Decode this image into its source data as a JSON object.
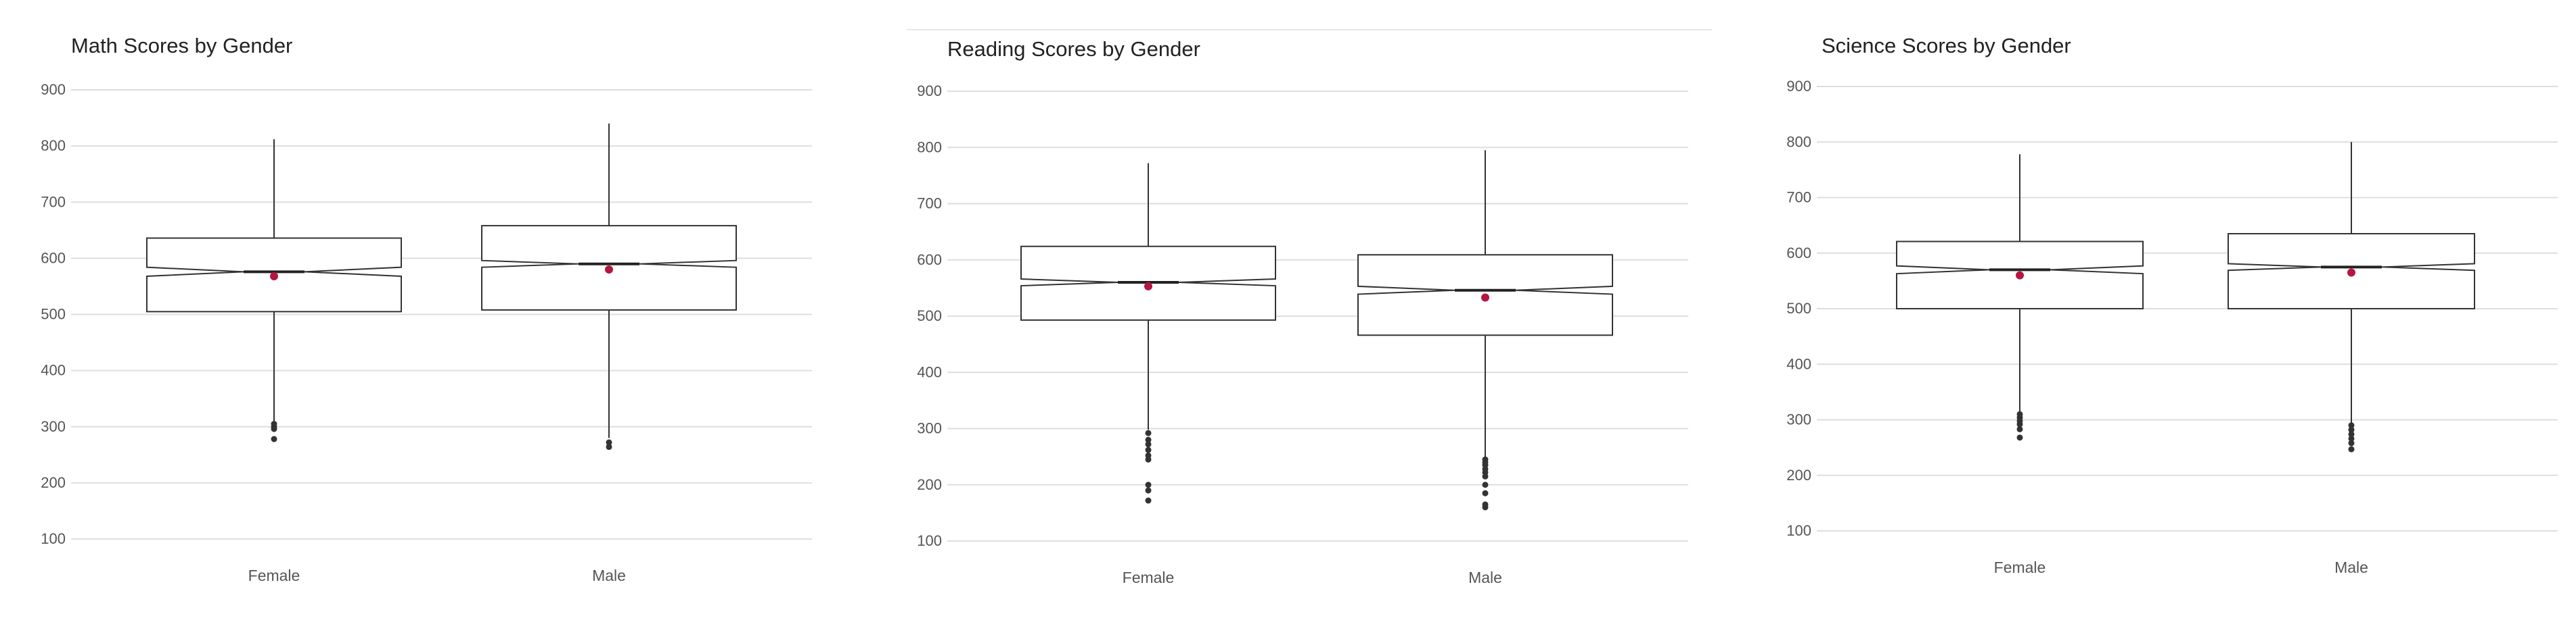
{
  "chart_data": [
    {
      "type": "boxplot",
      "title": "Math Scores by Gender",
      "xlabel": "",
      "ylabel": "",
      "ylim": [
        70,
        930
      ],
      "yticks": [
        100,
        200,
        300,
        400,
        500,
        600,
        700,
        800,
        900
      ],
      "grid": true,
      "categories": [
        "Female",
        "Male"
      ],
      "boxes": [
        {
          "category": "Female",
          "whisker_low": 310,
          "q1": 505,
          "median": 576,
          "q3": 636,
          "whisker_high": 812,
          "mean": 568,
          "outliers": [
            305,
            300,
            296,
            278
          ],
          "notch": [
            568,
            584
          ]
        },
        {
          "category": "Male",
          "whisker_low": 280,
          "q1": 508,
          "median": 590,
          "q3": 658,
          "whisker_high": 840,
          "mean": 580,
          "outliers": [
            272,
            264
          ],
          "notch": [
            584,
            596
          ]
        }
      ]
    },
    {
      "type": "boxplot",
      "title": "Reading Scores by Gender",
      "xlabel": "",
      "ylabel": "",
      "ylim": [
        70,
        930
      ],
      "yticks": [
        100,
        200,
        300,
        400,
        500,
        600,
        700,
        800,
        900
      ],
      "grid": true,
      "categories": [
        "Female",
        "Male"
      ],
      "boxes": [
        {
          "category": "Female",
          "whisker_low": 298,
          "q1": 493,
          "median": 560,
          "q3": 624,
          "whisker_high": 772,
          "mean": 553,
          "outliers": [
            292,
            280,
            272,
            262,
            252,
            245,
            200,
            190,
            172
          ],
          "notch": [
            554,
            566
          ]
        },
        {
          "category": "Male",
          "whisker_low": 250,
          "q1": 466,
          "median": 546,
          "q3": 609,
          "whisker_high": 795,
          "mean": 533,
          "outliers": [
            245,
            240,
            235,
            228,
            222,
            215,
            200,
            185,
            165,
            160
          ],
          "notch": [
            539,
            553
          ]
        }
      ]
    },
    {
      "type": "boxplot",
      "title": "Science Scores by Gender",
      "xlabel": "",
      "ylabel": "",
      "ylim": [
        70,
        930
      ],
      "yticks": [
        100,
        200,
        300,
        400,
        500,
        600,
        700,
        800,
        900
      ],
      "grid": true,
      "categories": [
        "Female",
        "Male"
      ],
      "boxes": [
        {
          "category": "Female",
          "whisker_low": 315,
          "q1": 500,
          "median": 570,
          "q3": 621,
          "whisker_high": 778,
          "mean": 560,
          "outliers": [
            310,
            304,
            298,
            292,
            283,
            268
          ],
          "notch": [
            563,
            577
          ]
        },
        {
          "category": "Male",
          "whisker_low": 295,
          "q1": 500,
          "median": 575,
          "q3": 635,
          "whisker_high": 800,
          "mean": 565,
          "outliers": [
            290,
            282,
            274,
            266,
            258,
            247
          ],
          "notch": [
            569,
            581
          ]
        }
      ]
    }
  ],
  "colors": {
    "mean_point": "#b5163f",
    "outlier": "#333333",
    "box_stroke": "#333333",
    "grid": "#dedede"
  }
}
